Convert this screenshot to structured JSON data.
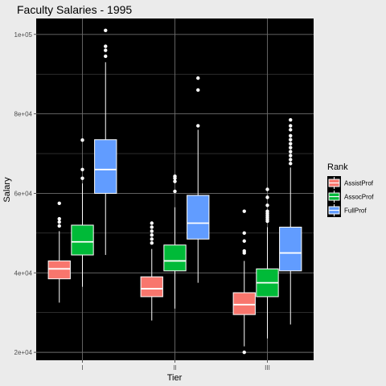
{
  "chart_data": {
    "type": "boxplot",
    "title": "Faculty Salaries - 1995",
    "xlabel": "Tier",
    "ylabel": "Salary",
    "categories": [
      "I",
      "II",
      "III"
    ],
    "ylim": [
      18000,
      104000
    ],
    "yticks": [
      20000,
      40000,
      60000,
      80000,
      100000
    ],
    "ytick_labels": [
      "2e+04",
      "4e+04",
      "6e+04",
      "8e+04",
      "1e+05"
    ],
    "grid": true,
    "legend": {
      "title": "Rank",
      "position": "right"
    },
    "series": [
      {
        "name": "AssistProf",
        "color": "#f8766d",
        "boxes": [
          {
            "category": "I",
            "whisker_low": 32500,
            "q1": 38500,
            "median": 41000,
            "q3": 43000,
            "whisker_high": 50500,
            "outliers": [
              51800,
              52800,
              53600,
              57500
            ]
          },
          {
            "category": "II",
            "whisker_low": 28000,
            "q1": 34000,
            "median": 36000,
            "q3": 39000,
            "whisker_high": 46000,
            "outliers": [
              47500,
              48500,
              49500,
              50500,
              51500,
              52500
            ]
          },
          {
            "category": "III",
            "whisker_low": 21500,
            "q1": 29500,
            "median": 32000,
            "q3": 35000,
            "whisker_high": 43000,
            "outliers": [
              20000,
              45000,
              45500,
              48000,
              50000,
              55500
            ]
          }
        ]
      },
      {
        "name": "AssocProf",
        "color": "#00ba38",
        "boxes": [
          {
            "category": "I",
            "whisker_low": 36500,
            "q1": 44500,
            "median": 47800,
            "q3": 52000,
            "whisker_high": 62500,
            "outliers": [
              63800,
              66000,
              73400
            ]
          },
          {
            "category": "II",
            "whisker_low": 31000,
            "q1": 40500,
            "median": 43000,
            "q3": 47000,
            "whisker_high": 56500,
            "outliers": [
              60500,
              63000,
              63800,
              64300
            ]
          },
          {
            "category": "III",
            "whisker_low": 23500,
            "q1": 34000,
            "median": 37500,
            "q3": 41000,
            "whisker_high": 51500,
            "outliers": [
              53000,
              53500,
              54000,
              54500,
              55000,
              55500,
              57000,
              59000,
              61000
            ]
          }
        ]
      },
      {
        "name": "FullProf",
        "color": "#619cff",
        "boxes": [
          {
            "category": "I",
            "whisker_low": 44500,
            "q1": 60000,
            "median": 66000,
            "q3": 73500,
            "whisker_high": 93000,
            "outliers": [
              94500,
              96000,
              97000,
              101000
            ]
          },
          {
            "category": "II",
            "whisker_low": 37500,
            "q1": 48500,
            "median": 52500,
            "q3": 59500,
            "whisker_high": 76000,
            "outliers": [
              77000,
              86000,
              89000
            ]
          },
          {
            "category": "III",
            "whisker_low": 27000,
            "q1": 40500,
            "median": 45000,
            "q3": 51500,
            "whisker_high": 66500,
            "outliers": [
              67500,
              68500,
              69500,
              70500,
              71500,
              72500,
              73500,
              74500,
              76000,
              77000,
              78500
            ]
          }
        ]
      }
    ]
  }
}
